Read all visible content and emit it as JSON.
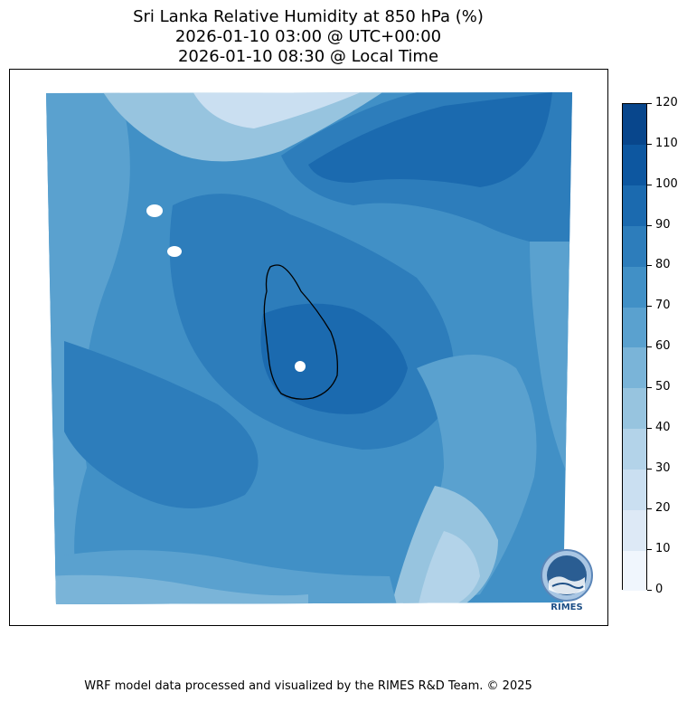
{
  "title": {
    "line1": "Sri Lanka Relative Humidity at 850 hPa (%)",
    "line2": "2026-01-10 03:00 @ UTC+00:00",
    "line3": "2026-01-10 08:30 @ Local Time"
  },
  "colorbar": {
    "ticks": [
      "0",
      "10",
      "20",
      "30",
      "40",
      "50",
      "60",
      "70",
      "80",
      "90",
      "100",
      "110",
      "120"
    ],
    "colors": [
      "#f0f6fd",
      "#dde9f6",
      "#cadff1",
      "#b3d3e9",
      "#97c4df",
      "#7ab4d8",
      "#5aa1cf",
      "#4190c6",
      "#2d7dbb",
      "#1b6aaf",
      "#0d57a0",
      "#08468c",
      "#083a75"
    ]
  },
  "map": {
    "background_color": "#3f8fc5"
  },
  "logo": {
    "text": "RIMES"
  },
  "footer": "WRF model data processed and visualized by the RIMES R&D Team. © 2025"
}
